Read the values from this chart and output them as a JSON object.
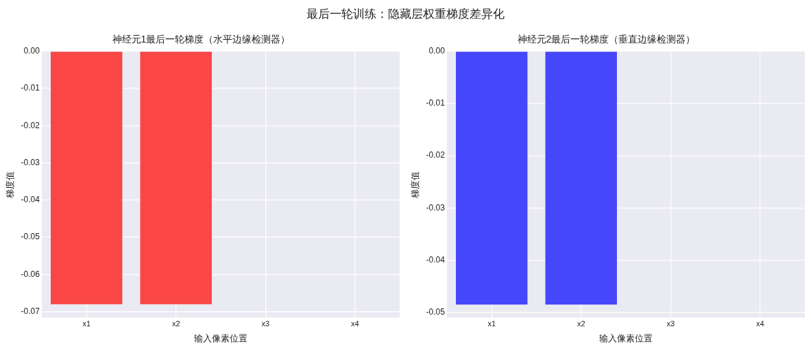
{
  "chart_data": [
    {
      "type": "bar",
      "title": "神经元1最后一轮梯度（水平边缘检测器）",
      "xlabel": "输入像素位置",
      "ylabel": "梯度值",
      "annotations": [
        "最后一轮训练：隐藏层权重梯度差异化"
      ],
      "categories": [
        "x1",
        "x2",
        "x3",
        "x4"
      ],
      "values": [
        -0.068,
        -0.068,
        0,
        0
      ],
      "color": "#fb4646",
      "ylim": [
        -0.0716,
        0
      ],
      "yticks": [
        {
          "value": 0,
          "label": "0.00"
        },
        {
          "value": -0.01,
          "label": "-0.01"
        },
        {
          "value": -0.02,
          "label": "-0.02"
        },
        {
          "value": -0.03,
          "label": "-0.03"
        },
        {
          "value": -0.04,
          "label": "-0.04"
        },
        {
          "value": -0.05,
          "label": "-0.05"
        },
        {
          "value": -0.06,
          "label": "-0.06"
        },
        {
          "value": -0.07,
          "label": "-0.07"
        }
      ],
      "grid": true
    },
    {
      "type": "bar",
      "title": "神经元2最后一轮梯度（垂直边缘检测器）",
      "xlabel": "输入像素位置",
      "ylabel": "梯度值",
      "categories": [
        "x1",
        "x2",
        "x3",
        "x4"
      ],
      "values": [
        -0.0485,
        -0.0485,
        0,
        0
      ],
      "color": "#4646fb",
      "ylim": [
        -0.051,
        0
      ],
      "yticks": [
        {
          "value": 0,
          "label": "0.00"
        },
        {
          "value": -0.01,
          "label": "-0.01"
        },
        {
          "value": -0.02,
          "label": "-0.02"
        },
        {
          "value": -0.03,
          "label": "-0.03"
        },
        {
          "value": -0.04,
          "label": "-0.04"
        },
        {
          "value": -0.05,
          "label": "-0.05"
        }
      ],
      "grid": true
    }
  ]
}
